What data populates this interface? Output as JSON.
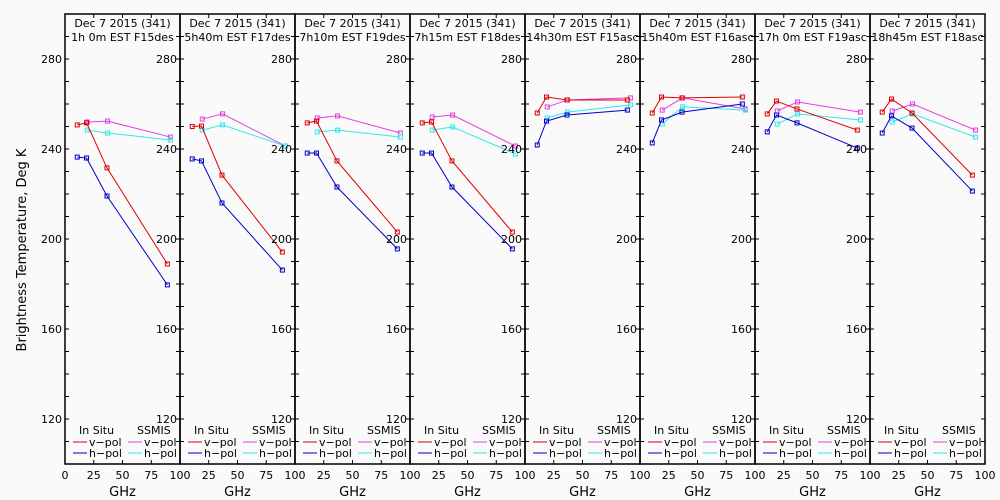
{
  "chart_data": {
    "type": "line",
    "ylabel": "Brightness Temperature, Deg K",
    "xlabel": "GHz",
    "ylim": [
      100,
      300
    ],
    "xlim": [
      0,
      100
    ],
    "yticks": [
      120,
      160,
      200,
      240,
      280
    ],
    "xticks_first": [
      "0",
      "25",
      "50",
      "75",
      "100"
    ],
    "xticks_other": [
      "25",
      "50",
      "75",
      "100"
    ],
    "legend": {
      "insitu_title": "In Situ",
      "ssmis_title": "SSMIS",
      "vpol": "v−pol",
      "hpol": "h−pol",
      "placement": "bottom"
    },
    "colors": {
      "insitu_v": "#e00000",
      "insitu_h": "#0000c8",
      "ssmis_v": "#e040e0",
      "ssmis_h": "#30e8e8"
    },
    "insitu_freqs": [
      10.65,
      18.7,
      36.5,
      89.0
    ],
    "ssmis_freqs": [
      19.35,
      37.0,
      91.655
    ],
    "panels": [
      {
        "title1": "Dec 7 2015 (341)",
        "title2": "1h 0m EST F15des",
        "insitu_v": [
          250.7,
          251.6,
          231.6,
          188.9
        ],
        "insitu_h": [
          236.4,
          236.0,
          219.1,
          179.6
        ],
        "ssmis_v": [
          252.0,
          252.4,
          245.3
        ],
        "ssmis_h": [
          248.4,
          247.1,
          244.0
        ]
      },
      {
        "title1": "Dec 7 2015 (341)",
        "title2": "5h40m EST F17des",
        "insitu_v": [
          250.0,
          250.2,
          228.4,
          194.2
        ],
        "insitu_h": [
          235.6,
          234.7,
          216.0,
          186.2
        ],
        "ssmis_v": [
          253.3,
          255.6,
          241.3
        ],
        "ssmis_h": [
          248.4,
          250.7,
          241.3
        ]
      },
      {
        "title1": "Dec 7 2015 (341)",
        "title2": "7h10m EST F19des",
        "insitu_v": [
          251.6,
          252.4,
          234.7,
          203.1
        ],
        "insitu_h": [
          238.2,
          238.2,
          223.1,
          195.6
        ],
        "ssmis_v": [
          253.8,
          254.7,
          247.1
        ],
        "ssmis_h": [
          247.6,
          248.4,
          245.3
        ]
      },
      {
        "title1": "Dec 7 2015 (341)",
        "title2": "7h15m EST F18des",
        "insitu_v": [
          251.6,
          252.0,
          234.7,
          203.1
        ],
        "insitu_h": [
          238.2,
          238.2,
          223.1,
          195.6
        ],
        "ssmis_v": [
          254.2,
          255.1,
          241.3
        ],
        "ssmis_h": [
          248.4,
          249.8,
          237.8
        ]
      },
      {
        "title1": "Dec 7 2015 (341)",
        "title2": "14h30m EST F15asc",
        "insitu_v": [
          256.0,
          263.1,
          261.8,
          261.8
        ],
        "insitu_h": [
          241.8,
          252.4,
          255.1,
          257.3
        ],
        "ssmis_v": [
          258.7,
          261.8,
          262.7
        ],
        "ssmis_h": [
          253.8,
          256.4,
          259.6
        ]
      },
      {
        "title1": "Dec 7 2015 (341)",
        "title2": "15h40m EST F16asc",
        "insitu_v": [
          256.0,
          263.1,
          262.7,
          263.1
        ],
        "insitu_h": [
          242.7,
          252.9,
          256.4,
          260.0
        ],
        "ssmis_v": [
          257.3,
          262.7,
          257.8
        ],
        "ssmis_h": [
          251.1,
          258.7,
          257.3
        ]
      },
      {
        "title1": "Dec 7 2015 (341)",
        "title2": "17h 0m EST F19asc",
        "insitu_v": [
          255.6,
          261.3,
          257.8,
          248.4
        ],
        "insitu_h": [
          247.6,
          255.1,
          251.6,
          240.4
        ],
        "ssmis_v": [
          256.9,
          260.9,
          256.4
        ],
        "ssmis_h": [
          251.1,
          255.6,
          252.9
        ]
      },
      {
        "title1": "Dec 7 2015 (341)",
        "title2": "18h45m EST F18asc",
        "insitu_v": [
          256.4,
          262.2,
          256.0,
          228.4
        ],
        "insitu_h": [
          247.1,
          254.7,
          249.3,
          221.3
        ],
        "ssmis_v": [
          256.9,
          260.0,
          248.4
        ],
        "ssmis_h": [
          252.0,
          255.6,
          245.3
        ]
      }
    ]
  }
}
